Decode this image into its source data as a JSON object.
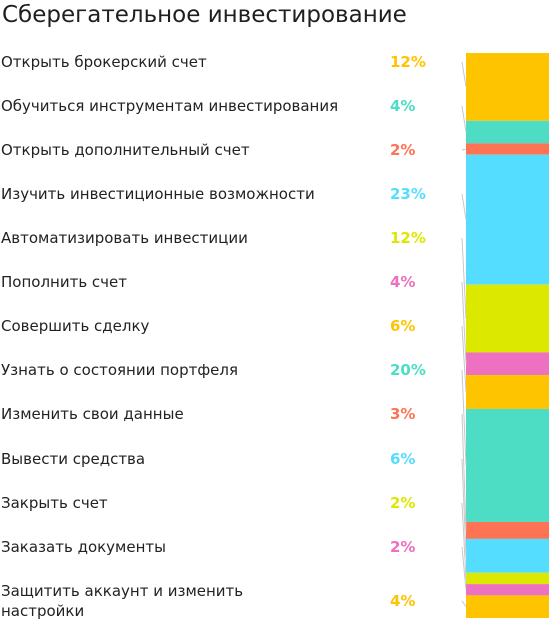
{
  "chart_data": {
    "type": "bar",
    "title": "Сберегательное инвестирование",
    "stacked": true,
    "categories": [
      "Открыть брокерский счет",
      "Обучиться инструментам инвестирования",
      "Открыть дополнительный счет",
      "Изучить инвестиционные возможности",
      "Автоматизировать инвестиции",
      "Пополнить счет",
      "Совершить сделку",
      "Узнать о состоянии портфеля",
      "Изменить свои данные",
      "Вывести средства",
      "Закрыть счет",
      "Заказать документы",
      "Защитить аккаунт и изменить настройки"
    ],
    "values": [
      12,
      4,
      2,
      23,
      12,
      4,
      6,
      20,
      3,
      6,
      2,
      2,
      4
    ],
    "value_labels": [
      "12%",
      "4%",
      "2%",
      "23%",
      "12%",
      "4%",
      "6%",
      "20%",
      "3%",
      "6%",
      "2%",
      "2%",
      "4%"
    ],
    "colors": [
      "#FFC400",
      "#4DDDC4",
      "#FF7355",
      "#55DDFF",
      "#DDE800",
      "#EE70C0",
      "#FFC400",
      "#4DDDC4",
      "#FF7355",
      "#55DDFF",
      "#DDE800",
      "#EE70C0",
      "#FFC400"
    ]
  }
}
